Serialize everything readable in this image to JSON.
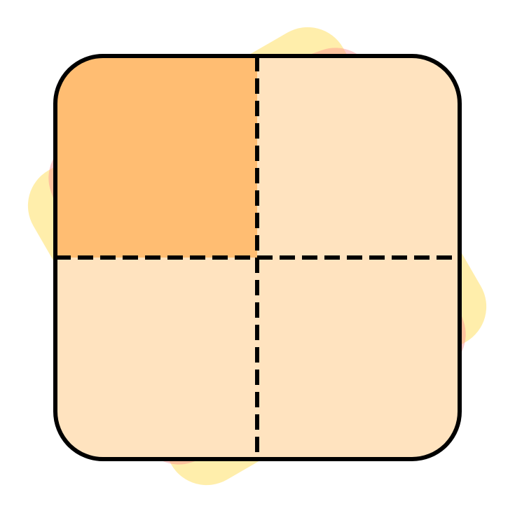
{
  "icon": {
    "name": "quarter-grid-icon",
    "colors": {
      "back_tile_yellow": "#FFE066",
      "back_tile_pink": "#FF8F8F",
      "highlight_quadrant": "#FFBD72",
      "quadrant_fill": "#FFE3BF",
      "outline": "#000000"
    },
    "grid": {
      "rows": 2,
      "columns": 2,
      "highlighted_quadrant": "top-left"
    }
  }
}
